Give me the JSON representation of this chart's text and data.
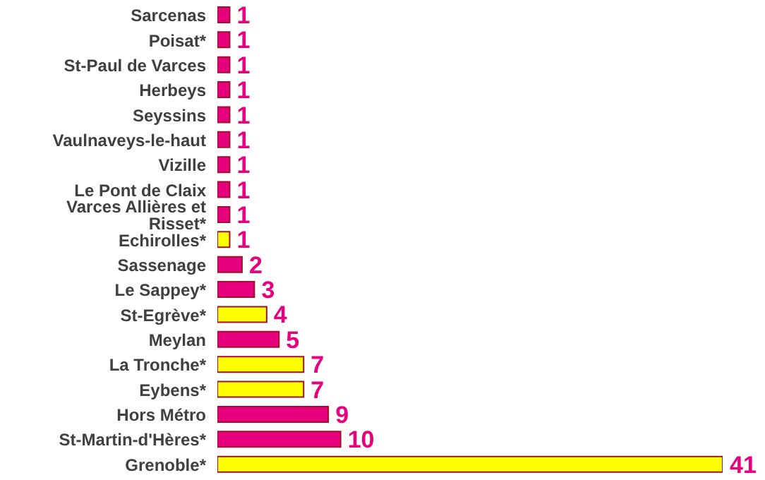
{
  "chart_data": {
    "type": "bar",
    "orientation": "horizontal",
    "data_labels": true,
    "grid": false,
    "legend": false,
    "tick_labels": "y",
    "categories": [
      "Sarcenas",
      "Poisat*",
      "St-Paul de Varces",
      "Herbeys",
      "Seyssins",
      "Vaulnaveys-le-haut",
      "Vizille",
      "Le Pont de Claix",
      "Varces Allières et Risset*",
      "Echirolles*",
      "Sassenage",
      "Le Sappey*",
      "St-Egrève*",
      "Meylan",
      "La Tronche*",
      "Eybens*",
      "Hors Métro",
      "St-Martin-d'Hères*",
      "Grenoble*"
    ],
    "values": [
      1,
      1,
      1,
      1,
      1,
      1,
      1,
      1,
      1,
      1,
      2,
      3,
      4,
      5,
      7,
      7,
      9,
      10,
      41
    ],
    "colors": [
      "#e6007e",
      "#e6007e",
      "#e6007e",
      "#e6007e",
      "#e6007e",
      "#e6007e",
      "#e6007e",
      "#e6007e",
      "#e6007e",
      "#ffff00",
      "#e6007e",
      "#e6007e",
      "#ffff00",
      "#e6007e",
      "#ffff00",
      "#ffff00",
      "#e6007e",
      "#e6007e",
      "#ffff00"
    ]
  }
}
